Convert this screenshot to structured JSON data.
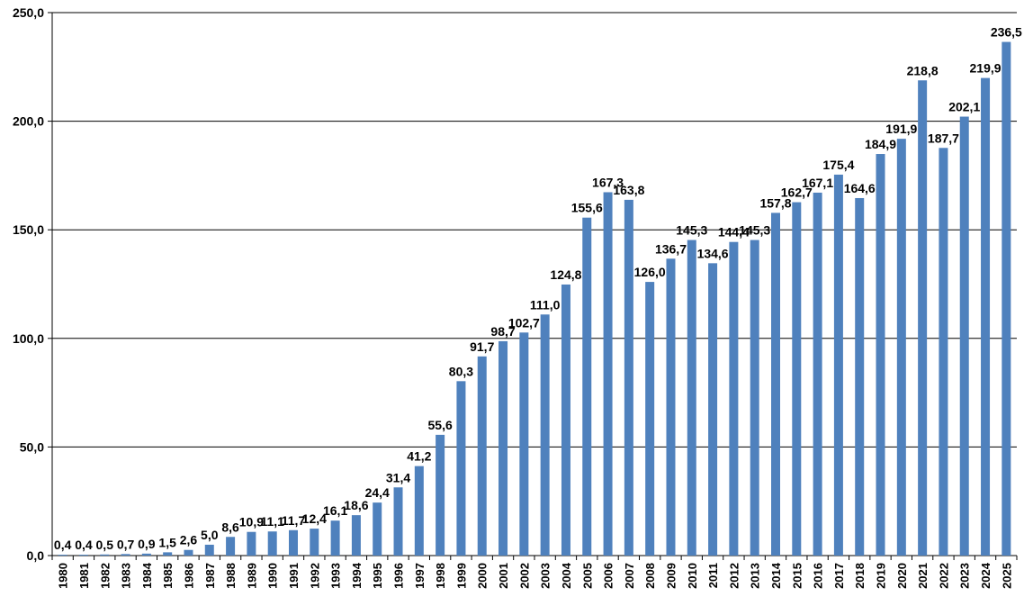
{
  "chart_data": {
    "type": "bar",
    "title": "",
    "xlabel": "",
    "ylabel": "",
    "ylim": [
      0,
      250
    ],
    "yticks": [
      "0,0",
      "50,0",
      "100,0",
      "150,0",
      "200,0",
      "250,0"
    ],
    "grid": true,
    "legend": "none",
    "bar_color": "#4f81bd",
    "categories": [
      "1980",
      "1981",
      "1982",
      "1983",
      "1984",
      "1985",
      "1986",
      "1987",
      "1988",
      "1989",
      "1990",
      "1991",
      "1992",
      "1993",
      "1994",
      "1995",
      "1996",
      "1997",
      "1998",
      "1999",
      "2000",
      "2001",
      "2002",
      "2003",
      "2004",
      "2005",
      "2006",
      "2007",
      "2008",
      "2009",
      "2010",
      "2011",
      "2012",
      "2013",
      "2014",
      "2015",
      "2016",
      "2017",
      "2018",
      "2019",
      "2020",
      "2021",
      "2022",
      "2023",
      "2024",
      "2025"
    ],
    "values": [
      0.4,
      0.4,
      0.5,
      0.7,
      0.9,
      1.5,
      2.6,
      5.0,
      8.6,
      10.9,
      11.1,
      11.7,
      12.4,
      16.1,
      18.6,
      24.4,
      31.4,
      41.2,
      55.6,
      80.3,
      91.7,
      98.7,
      102.7,
      111.0,
      124.8,
      155.6,
      167.3,
      163.8,
      126.0,
      136.7,
      145.3,
      134.6,
      144.4,
      145.3,
      157.8,
      162.7,
      167.1,
      175.4,
      164.6,
      184.9,
      191.9,
      218.8,
      187.7,
      202.1,
      219.9,
      236.5
    ],
    "data_labels": [
      "0,4",
      "0,4",
      "0,5",
      "0,7",
      "0,9",
      "1,5",
      "2,6",
      "5,0",
      "8,6",
      "10,9",
      "11,1",
      "11,7",
      "12,4",
      "16,1",
      "18,6",
      "24,4",
      "31,4",
      "41,2",
      "55,6",
      "80,3",
      "91,7",
      "98,7",
      "102,7",
      "111,0",
      "124,8",
      "155,6",
      "167,3",
      "163,8",
      "126,0",
      "136,7",
      "145,3",
      "134,6",
      "144,4",
      "145,3",
      "157,8",
      "162,7",
      "167,1",
      "175,4",
      "164,6",
      "184,9",
      "191,9",
      "218,8",
      "187,7",
      "202,1",
      "219,9",
      "236,5"
    ]
  }
}
